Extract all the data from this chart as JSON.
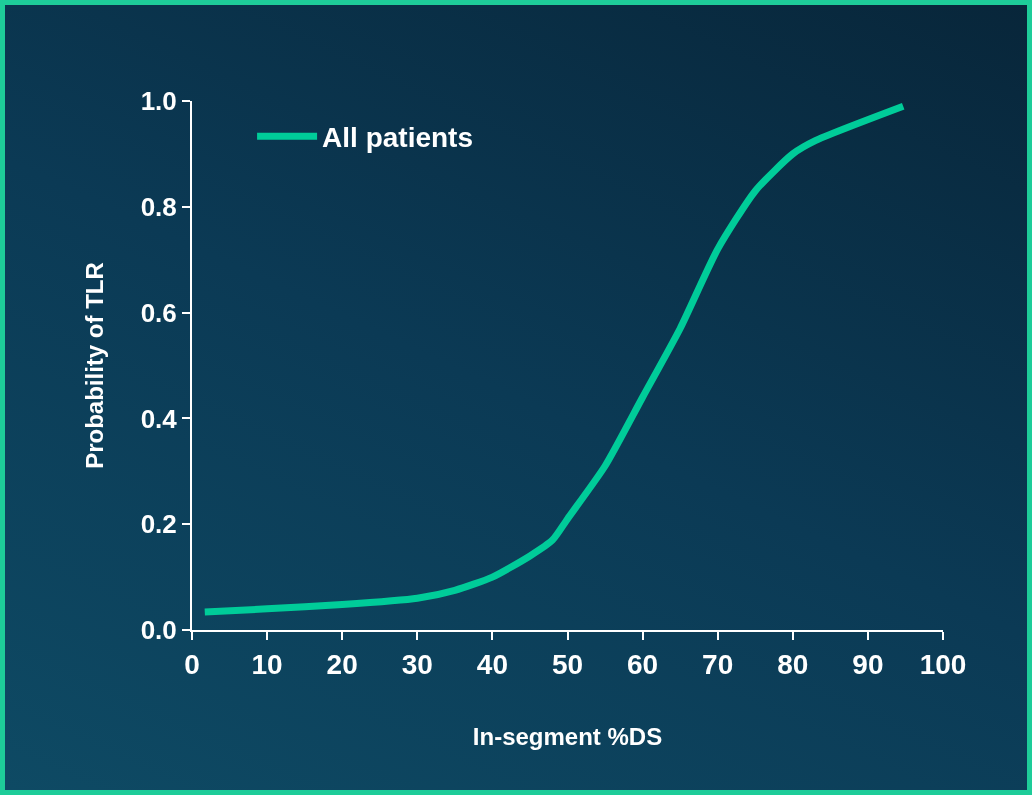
{
  "chart_data": {
    "type": "line",
    "xlabel": "In-segment %DS",
    "ylabel": "Probability of TLR",
    "x": [
      1.7,
      10,
      20,
      30,
      35,
      40,
      45,
      48,
      50,
      55,
      60,
      65,
      70,
      75,
      80,
      83,
      94.7
    ],
    "series": [
      {
        "name": "All patients",
        "color": "#00cc99",
        "values": [
          0.034,
          0.04,
          0.048,
          0.06,
          0.075,
          0.1,
          0.14,
          0.17,
          0.21,
          0.31,
          0.44,
          0.57,
          0.72,
          0.83,
          0.9,
          0.925,
          0.99
        ]
      }
    ],
    "xlim": [
      0,
      100
    ],
    "xticks": [
      0,
      10,
      20,
      30,
      40,
      50,
      60,
      70,
      80,
      90,
      100
    ],
    "ylim": [
      0,
      1
    ],
    "yticks": [
      {
        "value": 0,
        "label": "0.0"
      },
      {
        "value": 0.2,
        "label": "0.2"
      },
      {
        "value": 0.4,
        "label": "0.4"
      },
      {
        "value": 0.6,
        "label": "0.6"
      },
      {
        "value": 0.8,
        "label": "0.8"
      },
      {
        "value": 1,
        "label": "1.0"
      }
    ],
    "grid": false,
    "legend": "top left",
    "marker": "none",
    "line_style": "solid"
  }
}
